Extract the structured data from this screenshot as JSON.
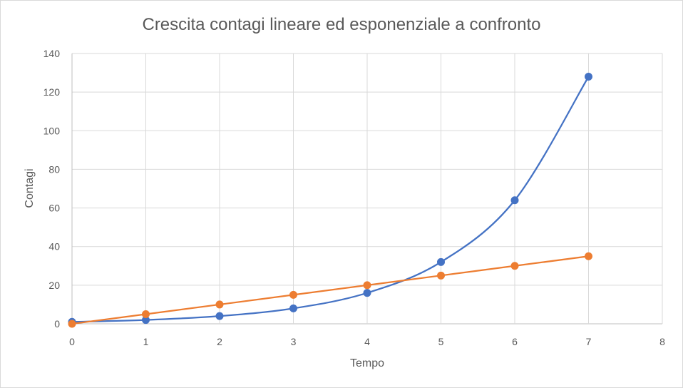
{
  "chart_data": {
    "type": "scatter",
    "title": "Crescita contagi lineare ed esponenziale a confronto",
    "xlabel": "Tempo",
    "ylabel": "Contagi",
    "xlim": [
      0,
      8
    ],
    "ylim": [
      0,
      140
    ],
    "x_ticks": [
      "0",
      "1",
      "2",
      "3",
      "4",
      "5",
      "6",
      "7",
      "8"
    ],
    "y_ticks": [
      "0",
      "20",
      "40",
      "60",
      "80",
      "100",
      "120",
      "140"
    ],
    "grid": true,
    "legend": "none",
    "series": [
      {
        "color": "#4472c4",
        "smooth": true,
        "points": [
          [
            0,
            1
          ],
          [
            1,
            2
          ],
          [
            2,
            4
          ],
          [
            3,
            8
          ],
          [
            4,
            16
          ],
          [
            5,
            32
          ],
          [
            6,
            64
          ],
          [
            7,
            128
          ]
        ]
      },
      {
        "color": "#ed7d31",
        "smooth": false,
        "points": [
          [
            0,
            0
          ],
          [
            1,
            5
          ],
          [
            2,
            10
          ],
          [
            3,
            15
          ],
          [
            4,
            20
          ],
          [
            5,
            25
          ],
          [
            6,
            30
          ],
          [
            7,
            35
          ]
        ]
      }
    ]
  }
}
